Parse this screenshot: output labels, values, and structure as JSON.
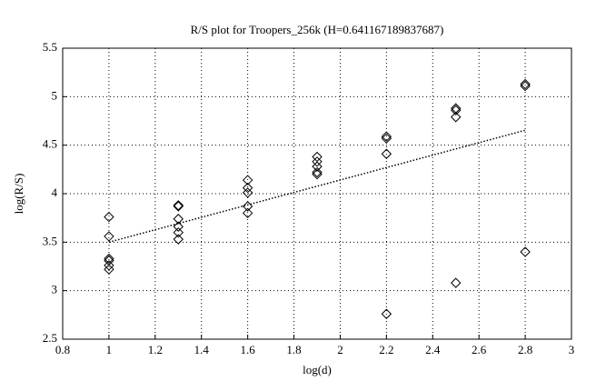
{
  "chart_data": {
    "type": "scatter",
    "title": "R/S plot for Troopers_256k (H=0.641167189837687)",
    "x_label": "log(d)",
    "y_label": "log(R/S)",
    "xlim": [
      0.8,
      3
    ],
    "ylim": [
      2.5,
      5.5
    ],
    "xticks": [
      0.8,
      1,
      1.2,
      1.4,
      1.6,
      1.8,
      2,
      2.2,
      2.4,
      2.6,
      2.8,
      3
    ],
    "yticks": [
      2.5,
      3,
      3.5,
      4,
      4.5,
      5,
      5.5
    ],
    "grid": true,
    "series": [
      {
        "type": "scatter",
        "marker": "diamond",
        "color": "#000000",
        "x": [
          1,
          1,
          1,
          1,
          1,
          1,
          1.3,
          1.3,
          1.3,
          1.3,
          1.3,
          1.3,
          1.6,
          1.6,
          1.6,
          1.6,
          1.6,
          1.9,
          1.9,
          1.9,
          1.9,
          1.9,
          2.2,
          2.2,
          2.2,
          2.2,
          2.5,
          2.5,
          2.5,
          2.5,
          2.8,
          2.8,
          2.8
        ],
        "values": [
          3.76,
          3.56,
          3.33,
          3.31,
          3.26,
          3.22,
          3.87,
          3.88,
          3.74,
          3.66,
          3.6,
          3.53,
          4.14,
          4.06,
          4.01,
          3.87,
          3.8,
          4.38,
          4.33,
          4.28,
          4.22,
          4.2,
          4.59,
          4.57,
          4.41,
          2.76,
          4.88,
          4.86,
          4.79,
          3.08,
          5.13,
          5.11,
          3.4
        ]
      },
      {
        "type": "line",
        "style": "dotted",
        "color": "#000000",
        "x": [
          1,
          2.8
        ],
        "values": [
          3.5,
          4.654
        ]
      }
    ]
  }
}
